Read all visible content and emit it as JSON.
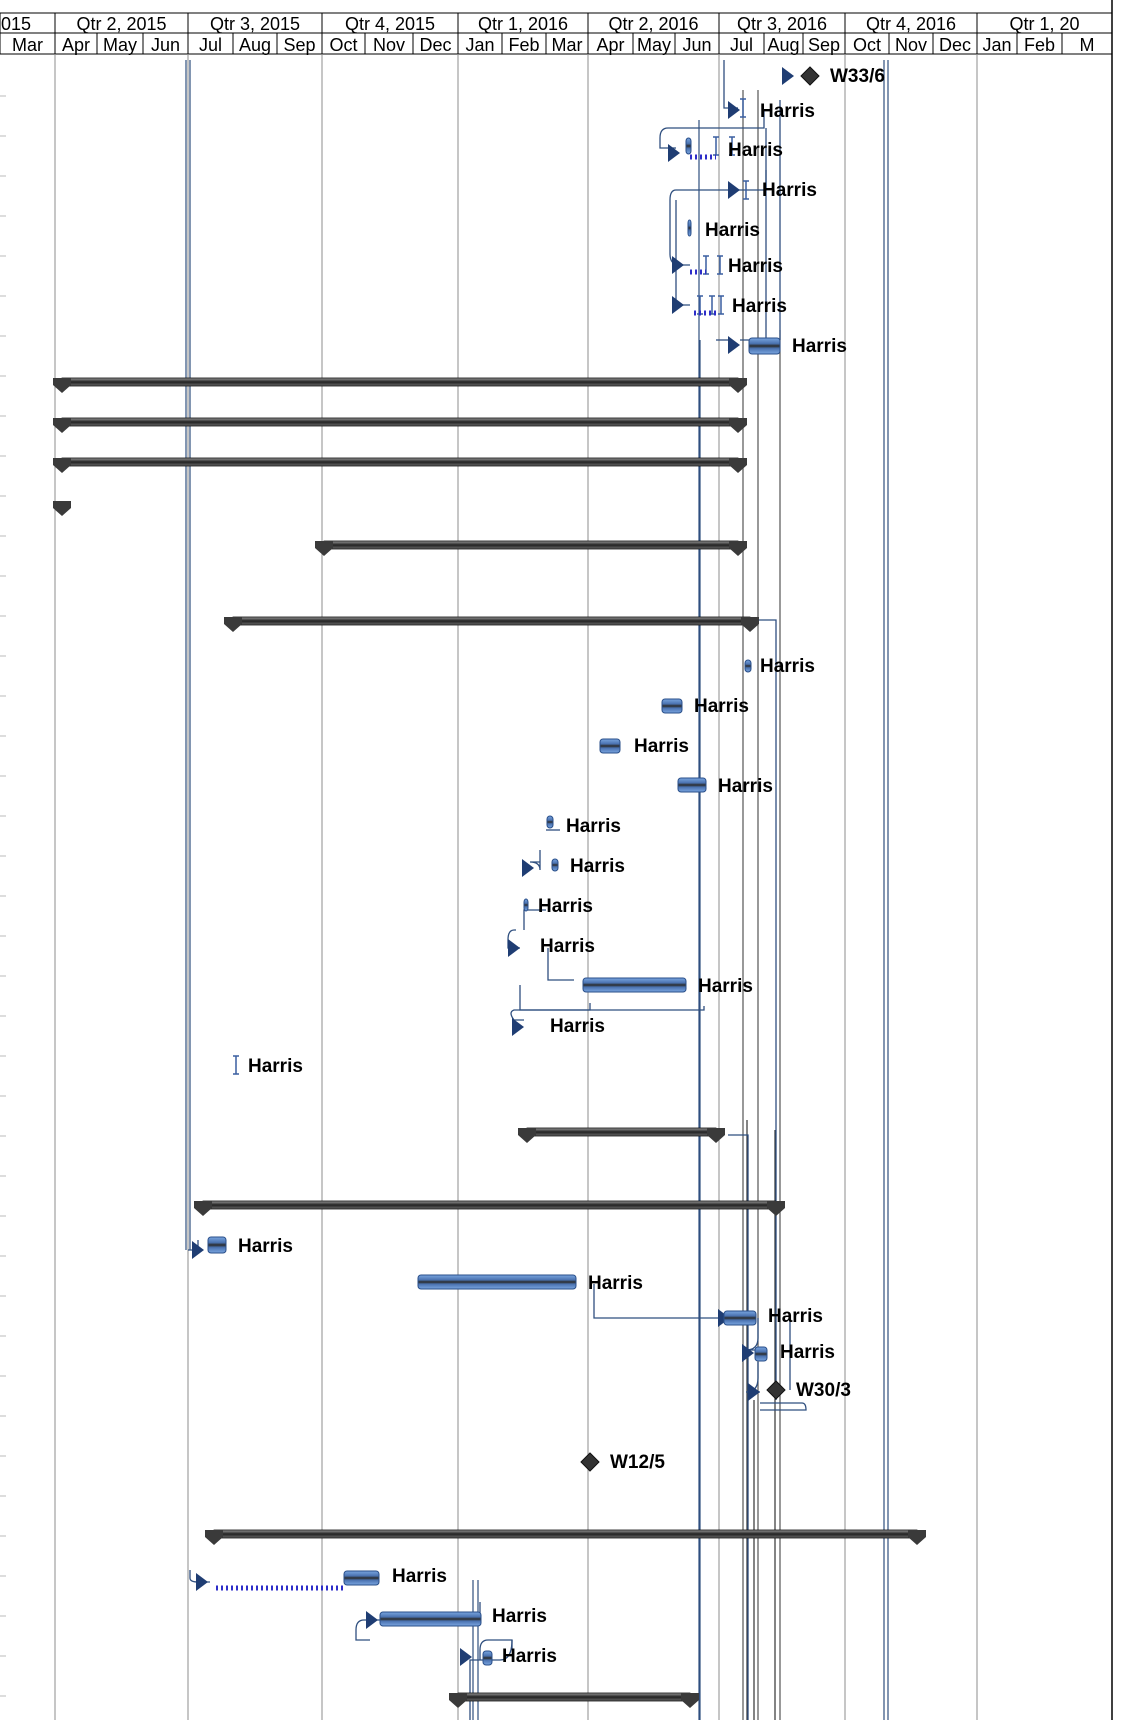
{
  "timescale": {
    "quarters": [
      "015",
      "Qtr 2, 2015",
      "Qtr 3, 2015",
      "Qtr 4, 2015",
      "Qtr 1, 2016",
      "Qtr 2, 2016",
      "Qtr 3, 2016",
      "Qtr 4, 2016",
      "Qtr 1, 20"
    ],
    "months": [
      "Mar",
      "Apr",
      "May",
      "Jun",
      "Jul",
      "Aug",
      "Sep",
      "Oct",
      "Nov",
      "Dec",
      "Jan",
      "Feb",
      "Mar",
      "Apr",
      "May",
      "Jun",
      "Jul",
      "Aug",
      "Sep",
      "Oct",
      "Nov",
      "Dec",
      "Jan",
      "Feb",
      "M"
    ]
  },
  "labels": {
    "resource": "Harris",
    "milestone_1": "W33/6",
    "milestone_2": "W30/3",
    "milestone_3": "W12/5"
  },
  "colors": {
    "task_bar": "#4a72b0",
    "summary_bar": "#3a3a3a",
    "link_line": "#2f4f7f",
    "milestone": "#333333",
    "grid": "#8c8c8c"
  }
}
